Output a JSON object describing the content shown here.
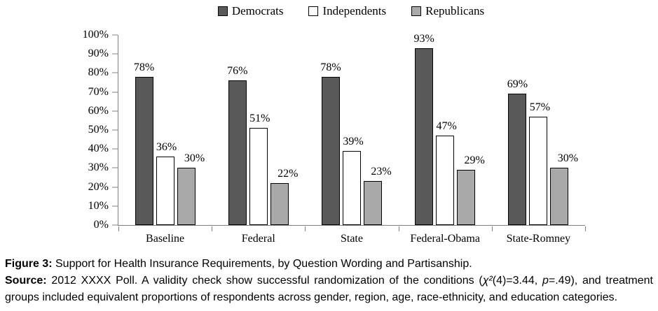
{
  "chart_data": {
    "type": "bar",
    "title": "",
    "xlabel": "",
    "ylabel": "",
    "categories": [
      "Baseline",
      "Federal",
      "State",
      "Federal-Obama",
      "State-Romney"
    ],
    "series": [
      {
        "name": "Democrats",
        "color": "#595959",
        "values": [
          78,
          76,
          78,
          93,
          69
        ]
      },
      {
        "name": "Independents",
        "color": "#FFFFFF",
        "values": [
          36,
          51,
          39,
          47,
          57
        ]
      },
      {
        "name": "Republicans",
        "color": "#A9A9A9",
        "values": [
          30,
          22,
          23,
          29,
          30
        ]
      }
    ],
    "ylim": [
      0,
      100
    ],
    "y_ticks": [
      "0%",
      "10%",
      "20%",
      "30%",
      "40%",
      "50%",
      "60%",
      "70%",
      "80%",
      "90%",
      "100%"
    ],
    "data_label_suffix": "%",
    "legend_position": "top",
    "grid": false,
    "bar_border_color": "#000000",
    "axis_color": "#808080"
  },
  "caption": {
    "figure_label": "Figure 3:",
    "figure_text": " Support for Health Insurance Requirements, by Question Wording and Partisanship.",
    "source_label": "Source:",
    "source_text_1": " 2012 XXXX Poll. A validity check show successful randomization of the conditions (",
    "source_chi": "χ²",
    "source_text_2": "(4)=3.44, ",
    "source_p": "p",
    "source_text_3": "=.49), and treatment groups included equivalent proportions of respondents across gender, region, age, race-ethnicity, and education categories."
  }
}
